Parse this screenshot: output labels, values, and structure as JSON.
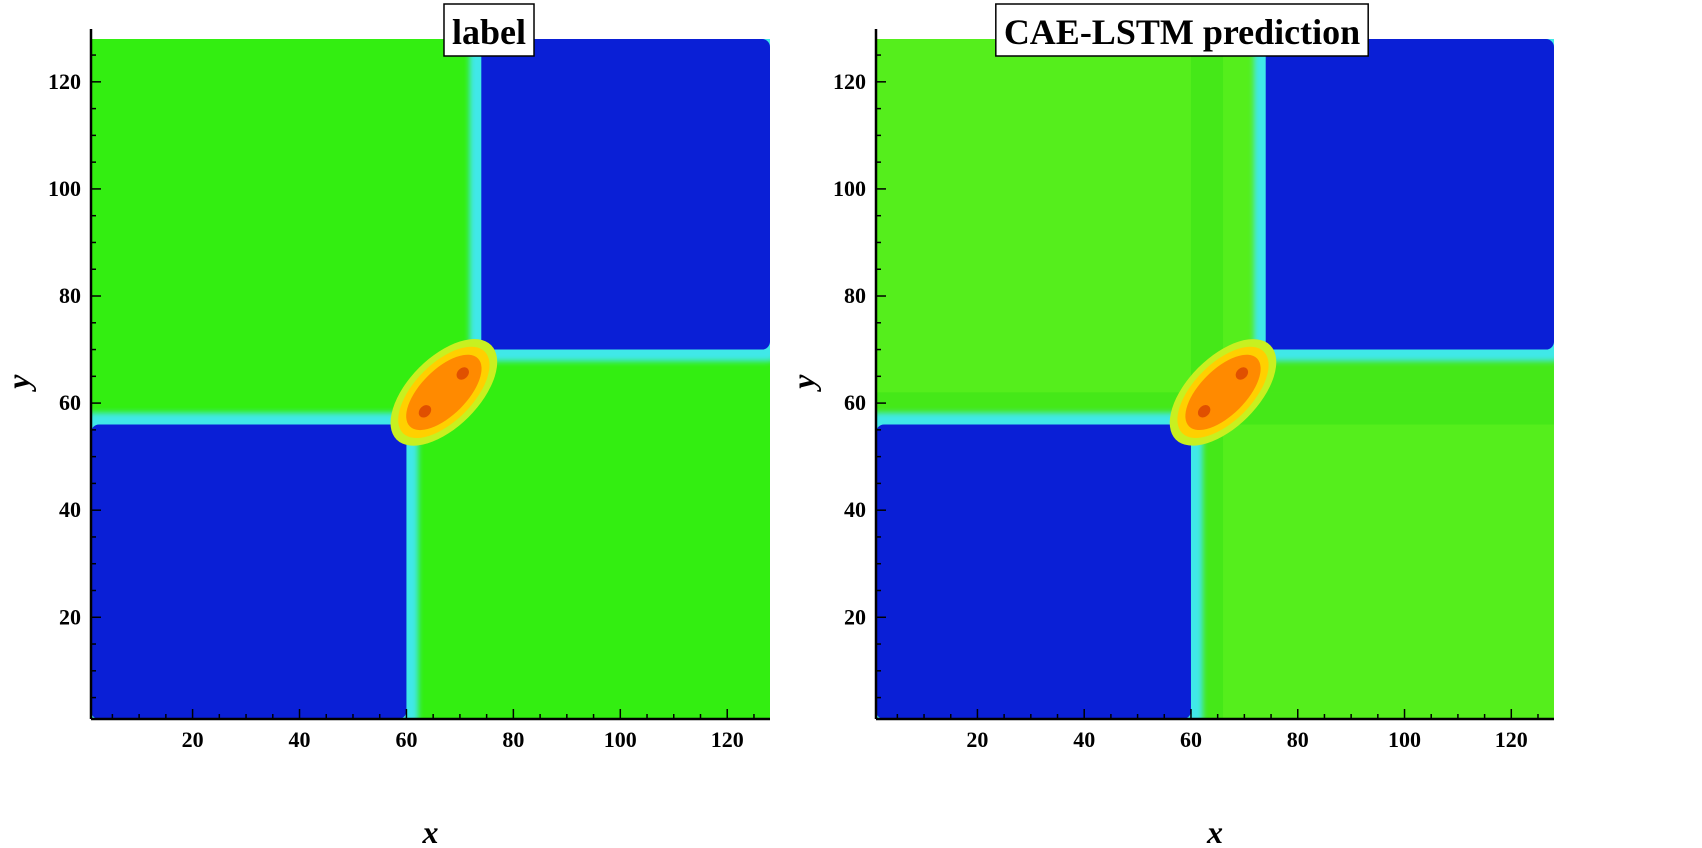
{
  "chart_data": [
    {
      "type": "heatmap",
      "title": "label",
      "xlabel": "x",
      "ylabel": "y",
      "xlim": [
        1,
        128
      ],
      "ylim": [
        1,
        128
      ],
      "x_ticks": [
        20,
        40,
        60,
        80,
        100,
        120
      ],
      "y_ticks": [
        20,
        40,
        60,
        80,
        100,
        120
      ],
      "colors": {
        "low": "#0a1fd6",
        "mid": "#33ee11",
        "high": "#ff8a00",
        "peak": "#e05000",
        "interface": "#40e8e8"
      },
      "regions": [
        {
          "name": "lower-left block",
          "x": [
            1,
            60
          ],
          "y": [
            1,
            56
          ],
          "level": "low"
        },
        {
          "name": "upper-right block",
          "x": [
            74,
            128
          ],
          "y": [
            70,
            128
          ],
          "level": "low"
        }
      ],
      "hotspot": {
        "center": [
          67,
          62
        ],
        "semi_axes": [
          10,
          4.5
        ],
        "angle_deg": 45
      }
    },
    {
      "type": "heatmap",
      "title": "CAE-LSTM prediction",
      "xlabel": "x",
      "ylabel": "y",
      "xlim": [
        1,
        128
      ],
      "ylim": [
        1,
        128
      ],
      "x_ticks": [
        20,
        40,
        60,
        80,
        100,
        120
      ],
      "y_ticks": [
        20,
        40,
        60,
        80,
        100,
        120
      ],
      "colors": {
        "low": "#0a1fd6",
        "mid": "#55ee1c",
        "high": "#ff8a00",
        "peak": "#e05000",
        "interface": "#40e8e8"
      },
      "regions": [
        {
          "name": "lower-left block",
          "x": [
            1,
            60
          ],
          "y": [
            1,
            56
          ],
          "level": "low"
        },
        {
          "name": "upper-right block",
          "x": [
            74,
            128
          ],
          "y": [
            70,
            128
          ],
          "level": "low"
        }
      ],
      "hotspot": {
        "center": [
          66,
          62
        ],
        "semi_axes": [
          10,
          4.5
        ],
        "angle_deg": 45
      }
    }
  ]
}
